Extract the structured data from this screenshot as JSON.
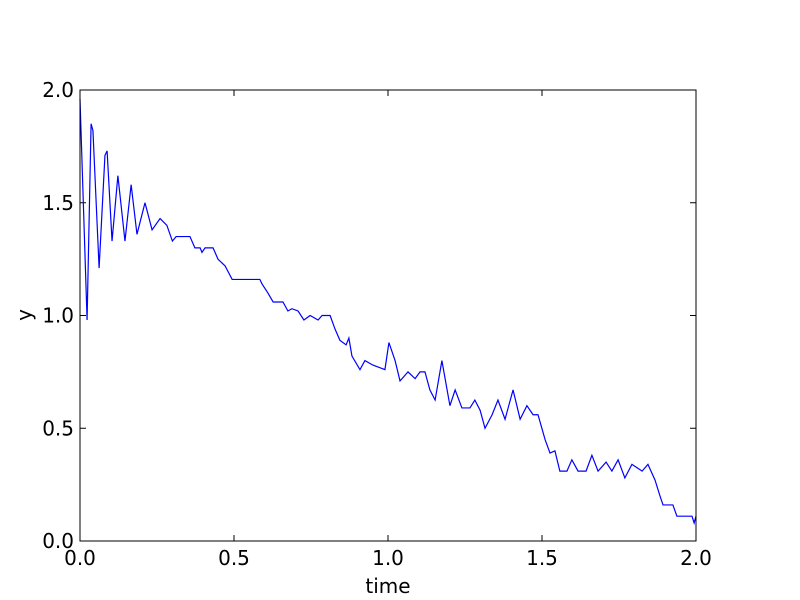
{
  "chart_data": {
    "type": "line",
    "xlabel": "time",
    "ylabel": "y",
    "color": "#0000ff",
    "x": [
      0,
      0.023,
      0.036,
      0.042,
      0.062,
      0.081,
      0.088,
      0.104,
      0.123,
      0.146,
      0.166,
      0.185,
      0.211,
      0.234,
      0.26,
      0.282,
      0.3,
      0.312,
      0.357,
      0.373,
      0.39,
      0.396,
      0.406,
      0.432,
      0.448,
      0.471,
      0.494,
      0.584,
      0.591,
      0.61,
      0.627,
      0.659,
      0.675,
      0.688,
      0.708,
      0.727,
      0.747,
      0.773,
      0.786,
      0.812,
      0.828,
      0.844,
      0.864,
      0.873,
      0.883,
      0.909,
      0.925,
      0.951,
      0.99,
      1.003,
      1.023,
      1.039,
      1.065,
      1.088,
      1.104,
      1.12,
      1.136,
      1.153,
      1.175,
      1.201,
      1.218,
      1.24,
      1.266,
      1.282,
      1.299,
      1.315,
      1.338,
      1.357,
      1.38,
      1.406,
      1.429,
      1.451,
      1.471,
      1.487,
      1.51,
      1.526,
      1.542,
      1.558,
      1.581,
      1.597,
      1.617,
      1.643,
      1.662,
      1.682,
      1.708,
      1.727,
      1.747,
      1.769,
      1.792,
      1.825,
      1.844,
      1.867,
      1.883,
      1.893,
      1.925,
      1.938,
      1.987,
      1.994,
      2.0
    ],
    "values": [
      1.96,
      0.98,
      1.85,
      1.82,
      1.21,
      1.71,
      1.73,
      1.33,
      1.62,
      1.33,
      1.58,
      1.36,
      1.5,
      1.38,
      1.43,
      1.4,
      1.33,
      1.35,
      1.35,
      1.3,
      1.3,
      1.28,
      1.3,
      1.3,
      1.25,
      1.22,
      1.16,
      1.16,
      1.14,
      1.1,
      1.06,
      1.06,
      1.02,
      1.03,
      1.02,
      0.98,
      1.0,
      0.98,
      1.0,
      1.0,
      0.94,
      0.89,
      0.87,
      0.9,
      0.82,
      0.76,
      0.8,
      0.78,
      0.76,
      0.88,
      0.8,
      0.71,
      0.75,
      0.72,
      0.75,
      0.75,
      0.67,
      0.625,
      0.8,
      0.6,
      0.67,
      0.59,
      0.59,
      0.625,
      0.58,
      0.5,
      0.56,
      0.625,
      0.54,
      0.67,
      0.54,
      0.6,
      0.56,
      0.56,
      0.45,
      0.39,
      0.4,
      0.31,
      0.31,
      0.36,
      0.31,
      0.31,
      0.38,
      0.31,
      0.35,
      0.31,
      0.36,
      0.28,
      0.34,
      0.31,
      0.34,
      0.27,
      0.2,
      0.16,
      0.16,
      0.11,
      0.11,
      0.08,
      0.11
    ],
    "xlim": [
      0,
      2
    ],
    "ylim": [
      0,
      2
    ],
    "xticks": [
      {
        "value": 0,
        "label": "0.0"
      },
      {
        "value": 0.5,
        "label": "0.5"
      },
      {
        "value": 1,
        "label": "1.0"
      },
      {
        "value": 1.5,
        "label": "1.5"
      },
      {
        "value": 2,
        "label": "2.0"
      }
    ],
    "yticks": [
      {
        "value": 0,
        "label": "0.0"
      },
      {
        "value": 0.5,
        "label": "0.5"
      },
      {
        "value": 1,
        "label": "1.0"
      },
      {
        "value": 1.5,
        "label": "1.5"
      },
      {
        "value": 2,
        "label": "2.0"
      }
    ],
    "grid": false
  }
}
